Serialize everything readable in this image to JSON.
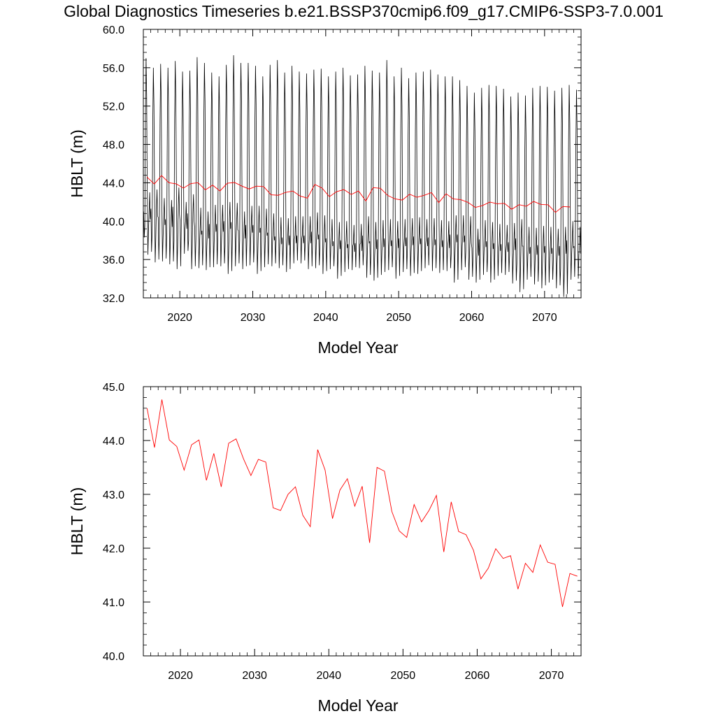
{
  "page_title": "Global Diagnostics Timeseries b.e21.BSSP370cmip6.f09_g17.CMIP6-SSP3-7.0.001",
  "colors": {
    "monthly_line": "#000000",
    "annual_line": "#ff0000",
    "axes": "#000000"
  },
  "chart_data": [
    {
      "type": "line",
      "ylabel": "HBLT (m)",
      "xlabel": "Model Year",
      "xlim": [
        2015,
        2075
      ],
      "ylim": [
        32.0,
        60.0
      ],
      "xticks": [
        2020,
        2030,
        2040,
        2050,
        2060,
        2070
      ],
      "xtick_labels": [
        "2020",
        "2030",
        "2040",
        "2050",
        "2060",
        "2070"
      ],
      "yticks": [
        32,
        36,
        40,
        44,
        48,
        52,
        56,
        60
      ],
      "ytick_labels": [
        "32.0",
        "36.0",
        "40.0",
        "44.0",
        "48.0",
        "52.0",
        "56.0",
        "60.0"
      ],
      "grid": false,
      "series": [
        {
          "style": "monthly",
          "color": "#000000",
          "x_start": 2015.04,
          "x_step": 0.0833333,
          "peaks": [
            57.0,
            56.0,
            56.4,
            56.0,
            56.7,
            55.6,
            55.7,
            57.1,
            56.5,
            55.5,
            55.1,
            56.3,
            57.3,
            56.5,
            56.5,
            56.2,
            55.1,
            56.3,
            56.8,
            55.5,
            56.2,
            55.6,
            55.4,
            55.8,
            55.9,
            55.1,
            55.6,
            56.0,
            55.2,
            55.3,
            56.2,
            55.7,
            55.5,
            56.8,
            55.1,
            56.0,
            54.9,
            55.5,
            55.6,
            55.8,
            55.3,
            55.1,
            55.1,
            54.7,
            54.1,
            53.4,
            53.9,
            54.2,
            54.1,
            53.8,
            53.0,
            53.4,
            53.1,
            53.9,
            54.1,
            54.0,
            53.6,
            53.9,
            54.2,
            53.7
          ],
          "troughs": [
            36.5,
            35.7,
            35.8,
            35.5,
            35.0,
            36.6,
            35.0,
            35.1,
            34.9,
            35.2,
            35.3,
            34.5,
            35.3,
            35.0,
            35.4,
            34.5,
            35.2,
            35.3,
            35.1,
            34.7,
            35.6,
            35.6,
            35.0,
            35.1,
            34.5,
            35.0,
            34.0,
            34.7,
            34.9,
            35.1,
            34.1,
            33.8,
            34.4,
            34.9,
            34.0,
            34.7,
            34.3,
            34.5,
            35.1,
            34.8,
            34.6,
            34.8,
            33.6,
            34.9,
            33.9,
            33.6,
            34.4,
            33.6,
            34.3,
            34.4,
            33.5,
            32.6,
            33.9,
            33.4,
            33.0,
            33.6,
            33.0,
            32.1,
            33.9,
            34.0
          ],
          "mid_levels": [
            41.0,
            41.3,
            40.4,
            40.2,
            41.5,
            40.0,
            40.8,
            39.4,
            39.0,
            39.7,
            39.7,
            40.0,
            39.9,
            39.0,
            39.6,
            39.6,
            39.3,
            38.8,
            38.4,
            38.3,
            38.5,
            38.5,
            38.5,
            38.9,
            38.6,
            38.2,
            37.9,
            38.0,
            37.6,
            37.7,
            38.5,
            37.9,
            38.1,
            38.2,
            38.0,
            38.2,
            38.3,
            38.4,
            38.2,
            38.3,
            38.1,
            38.0,
            38.6,
            38.6,
            38.5,
            37.2,
            38.1,
            37.9,
            37.7,
            37.6,
            37.8,
            38.2,
            37.4,
            37.3,
            37.5,
            37.4,
            37.2,
            37.4,
            38.0,
            37.4
          ]
        },
        {
          "style": "annual",
          "color": "#ff0000",
          "x": [
            2015.5,
            2016.5,
            2017.5,
            2018.5,
            2019.5,
            2020.5,
            2021.5,
            2022.5,
            2023.5,
            2024.5,
            2025.5,
            2026.5,
            2027.5,
            2028.5,
            2029.5,
            2030.5,
            2031.5,
            2032.5,
            2033.5,
            2034.5,
            2035.5,
            2036.5,
            2037.5,
            2038.5,
            2039.5,
            2040.5,
            2041.5,
            2042.5,
            2043.5,
            2044.5,
            2045.5,
            2046.5,
            2047.5,
            2048.5,
            2049.5,
            2050.5,
            2051.5,
            2052.5,
            2053.5,
            2054.5,
            2055.5,
            2056.5,
            2057.5,
            2058.5,
            2059.5,
            2060.5,
            2061.5,
            2062.5,
            2063.5,
            2064.5,
            2065.5,
            2066.5,
            2067.5,
            2068.5,
            2069.5,
            2070.5,
            2071.5,
            2072.5,
            2073.5
          ],
          "y": [
            44.6,
            43.87,
            44.76,
            44.01,
            43.89,
            43.45,
            43.92,
            44.01,
            43.26,
            43.76,
            43.14,
            43.95,
            44.03,
            43.66,
            43.35,
            43.65,
            43.6,
            42.75,
            42.7,
            43.0,
            43.14,
            42.61,
            42.4,
            43.83,
            43.45,
            42.55,
            43.08,
            43.29,
            42.78,
            43.15,
            42.1,
            43.5,
            43.43,
            42.68,
            42.32,
            42.2,
            42.81,
            42.49,
            42.7,
            42.98,
            41.93,
            42.86,
            42.31,
            42.25,
            41.96,
            41.43,
            41.63,
            41.99,
            41.81,
            41.86,
            41.24,
            41.72,
            41.55,
            42.06,
            41.74,
            41.7,
            40.91,
            41.53,
            41.48
          ]
        }
      ]
    },
    {
      "type": "line",
      "ylabel": "HBLT (m)",
      "xlabel": "Model Year",
      "xlim": [
        2015,
        2074
      ],
      "ylim": [
        40.0,
        45.0
      ],
      "xticks": [
        2020,
        2030,
        2040,
        2050,
        2060,
        2070
      ],
      "xtick_labels": [
        "2020",
        "2030",
        "2040",
        "2050",
        "2060",
        "2070"
      ],
      "yticks": [
        40,
        41,
        42,
        43,
        44,
        45
      ],
      "ytick_labels": [
        "40.0",
        "41.0",
        "42.0",
        "43.0",
        "44.0",
        "45.0"
      ],
      "grid": false,
      "series": [
        {
          "style": "annual",
          "color": "#ff0000",
          "x": [
            2015.5,
            2016.5,
            2017.5,
            2018.5,
            2019.5,
            2020.5,
            2021.5,
            2022.5,
            2023.5,
            2024.5,
            2025.5,
            2026.5,
            2027.5,
            2028.5,
            2029.5,
            2030.5,
            2031.5,
            2032.5,
            2033.5,
            2034.5,
            2035.5,
            2036.5,
            2037.5,
            2038.5,
            2039.5,
            2040.5,
            2041.5,
            2042.5,
            2043.5,
            2044.5,
            2045.5,
            2046.5,
            2047.5,
            2048.5,
            2049.5,
            2050.5,
            2051.5,
            2052.5,
            2053.5,
            2054.5,
            2055.5,
            2056.5,
            2057.5,
            2058.5,
            2059.5,
            2060.5,
            2061.5,
            2062.5,
            2063.5,
            2064.5,
            2065.5,
            2066.5,
            2067.5,
            2068.5,
            2069.5,
            2070.5,
            2071.5,
            2072.5,
            2073.5
          ],
          "y": [
            44.6,
            43.87,
            44.76,
            44.01,
            43.89,
            43.45,
            43.92,
            44.01,
            43.26,
            43.76,
            43.14,
            43.95,
            44.03,
            43.66,
            43.35,
            43.65,
            43.6,
            42.75,
            42.7,
            43.0,
            43.14,
            42.61,
            42.4,
            43.83,
            43.45,
            42.55,
            43.08,
            43.29,
            42.78,
            43.15,
            42.1,
            43.5,
            43.43,
            42.68,
            42.32,
            42.2,
            42.81,
            42.49,
            42.7,
            42.98,
            41.93,
            42.86,
            42.31,
            42.25,
            41.96,
            41.43,
            41.63,
            41.99,
            41.81,
            41.86,
            41.24,
            41.72,
            41.55,
            42.06,
            41.74,
            41.7,
            40.91,
            41.53,
            41.48
          ]
        }
      ]
    }
  ]
}
